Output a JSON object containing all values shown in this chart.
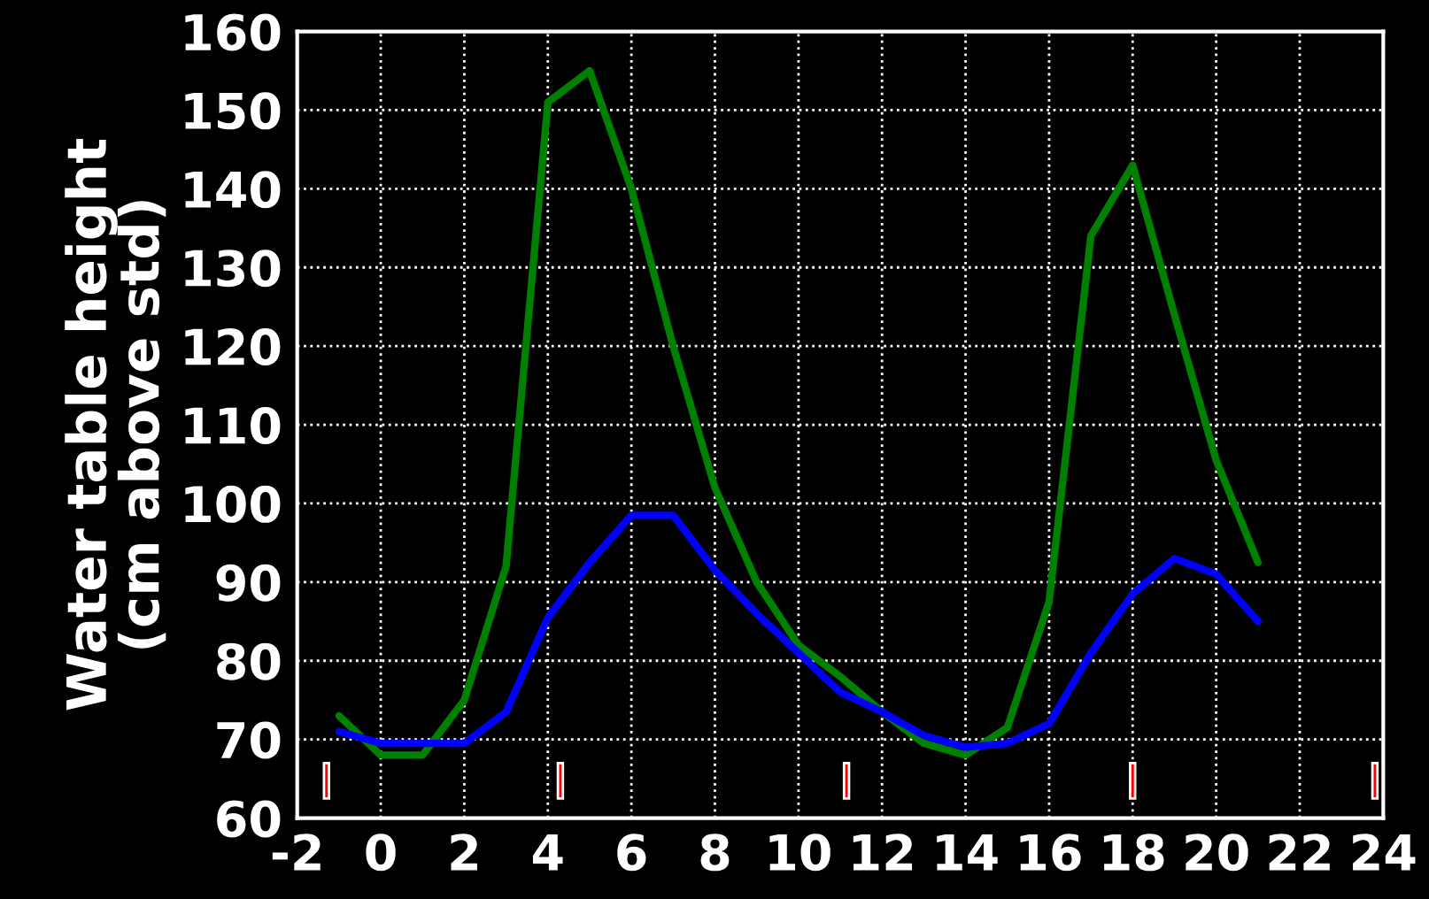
{
  "chart_data": {
    "type": "line",
    "ylabel": "Water table height\n(cm above std)",
    "xlim": [
      -2,
      24
    ],
    "xticks": [
      -2,
      0,
      2,
      4,
      6,
      8,
      10,
      12,
      14,
      16,
      18,
      20,
      22,
      24
    ],
    "ylim": [
      60,
      160
    ],
    "yticks": [
      60,
      70,
      80,
      90,
      100,
      110,
      120,
      130,
      140,
      150,
      160
    ],
    "grid": true,
    "series": [
      {
        "color": "#008000",
        "x": [
          -1,
          0,
          1,
          2,
          3,
          4,
          5,
          6,
          7,
          8,
          9,
          10,
          11,
          12,
          13,
          14,
          15,
          16,
          17,
          18,
          19,
          20,
          21
        ],
        "values": [
          73,
          68,
          68,
          75,
          92,
          151,
          155,
          140,
          120,
          102,
          90,
          82,
          78,
          73.5,
          69.5,
          68,
          71.5,
          87.5,
          134,
          143,
          124,
          105.5,
          92.5
        ]
      },
      {
        "color": "#0000ff",
        "x": [
          -1,
          0,
          1,
          2,
          3,
          4,
          5,
          6,
          7,
          8,
          9,
          10,
          11,
          12,
          13,
          14,
          15,
          16,
          17,
          18,
          19,
          20,
          21
        ],
        "values": [
          71,
          69.5,
          69.5,
          69.5,
          73.5,
          85.5,
          92.5,
          98.5,
          98.5,
          91.5,
          86,
          81,
          76,
          73.5,
          70.5,
          69,
          69.5,
          72,
          81,
          88.5,
          93,
          91,
          85
        ]
      },
      {
        "type": "bar",
        "color": "#ff0000",
        "x": [
          -1.3,
          4.3,
          11.15,
          18,
          23.8
        ],
        "base": [
          62.5,
          62.5,
          62.5,
          62.5,
          62.5
        ],
        "values": [
          4.5,
          4.5,
          4.5,
          4.5,
          4.5
        ]
      }
    ]
  }
}
